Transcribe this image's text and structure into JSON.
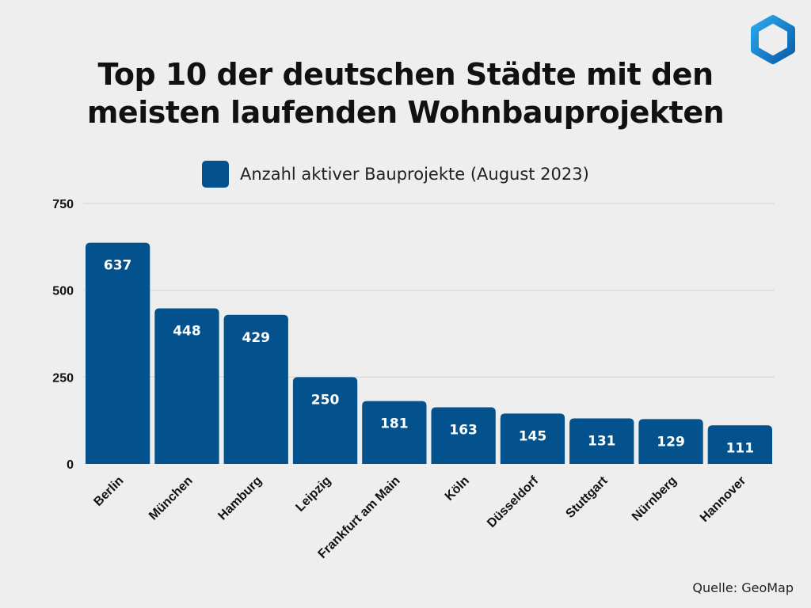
{
  "title_line1": "Top 10 der deutschen Städte mit den",
  "title_line2": "meisten laufenden Wohnbauprojekten",
  "source": "Quelle: GeoMap",
  "logo_icon": "hexagon-logo-icon",
  "colors": {
    "bar": "#03528d",
    "background": "#eeeeee",
    "grid": "#d4d4d4",
    "logo": "#1a8fd8"
  },
  "chart_data": {
    "type": "bar",
    "title": "Top 10 der deutschen Städte mit den meisten laufenden Wohnbauprojekten",
    "categories": [
      "Berlin",
      "München",
      "Hamburg",
      "Leipzig",
      "Frankfurt am Main",
      "Köln",
      "Düsseldorf",
      "Stuttgart",
      "Nürnberg",
      "Hannover"
    ],
    "series": [
      {
        "name": "Anzahl aktiver Bauprojekte (August 2023)",
        "values": [
          637,
          448,
          429,
          250,
          181,
          163,
          145,
          131,
          129,
          111
        ]
      }
    ],
    "ylim": [
      0,
      750
    ],
    "yticks": [
      0,
      250,
      500,
      750
    ],
    "grid": true,
    "legend": "top",
    "data_labels": true
  }
}
